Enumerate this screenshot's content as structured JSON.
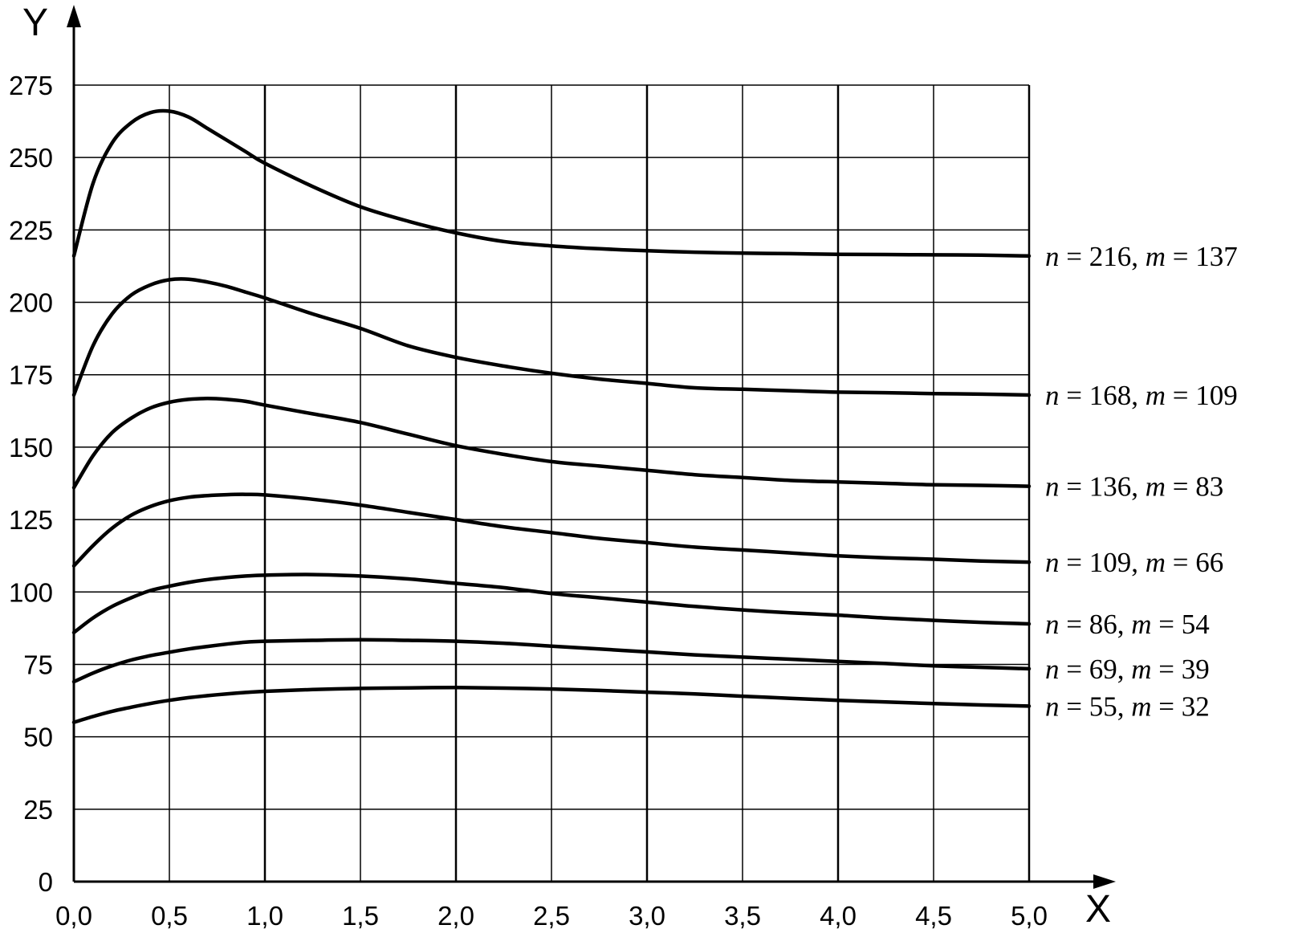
{
  "chart_data": {
    "type": "line",
    "title": "",
    "xlabel": "X",
    "ylabel": "Y",
    "xlim": [
      0,
      5
    ],
    "ylim": [
      0,
      275
    ],
    "grid": true,
    "x_ticks": [
      0,
      0.5,
      1,
      1.5,
      2,
      2.5,
      3,
      3.5,
      4,
      4.5,
      5
    ],
    "x_tick_labels": [
      "0,0",
      "0,5",
      "1,0",
      "1,5",
      "2,0",
      "2,5",
      "3,0",
      "3,5",
      "4,0",
      "4,5",
      "5,0"
    ],
    "y_ticks": [
      0,
      25,
      50,
      75,
      100,
      125,
      150,
      175,
      200,
      225,
      250,
      275
    ],
    "y_tick_labels": [
      "0",
      "25",
      "50",
      "75",
      "100",
      "125",
      "150",
      "175",
      "200",
      "225",
      "250",
      "275"
    ],
    "x": [
      0,
      0.1,
      0.2,
      0.3,
      0.4,
      0.5,
      0.6,
      0.7,
      0.8,
      0.9,
      1.0,
      1.25,
      1.5,
      1.75,
      2.0,
      2.25,
      2.5,
      2.75,
      3.0,
      3.25,
      3.5,
      3.75,
      4.0,
      4.25,
      4.5,
      4.75,
      5.0
    ],
    "series": [
      {
        "n": "216",
        "m": "137",
        "values": [
          216,
          241,
          255,
          262,
          265.5,
          266,
          264,
          260,
          256,
          252,
          248,
          240,
          233,
          228,
          224,
          221,
          219.5,
          218.5,
          217.8,
          217.3,
          217,
          216.8,
          216.6,
          216.5,
          216.4,
          216.3,
          216
        ]
      },
      {
        "n": "168",
        "m": "109",
        "values": [
          168,
          185,
          196,
          202.5,
          206,
          207.8,
          208,
          207,
          205.5,
          203.5,
          201.5,
          196,
          191,
          185,
          181,
          178,
          175.5,
          173.5,
          172,
          170.5,
          170,
          169.5,
          169,
          168.8,
          168.5,
          168.3,
          168
        ]
      },
      {
        "n": "136",
        "m": "83",
        "values": [
          136,
          147,
          155,
          160,
          163.5,
          165.5,
          166.5,
          166.8,
          166.5,
          165.8,
          164.5,
          161.5,
          158.5,
          154.5,
          150.5,
          147.5,
          145,
          143.5,
          142,
          140.5,
          139.5,
          138.5,
          138,
          137.5,
          137,
          136.8,
          136.5
        ]
      },
      {
        "n": "109",
        "m": "66",
        "values": [
          109,
          116,
          122,
          126.5,
          129.5,
          131.5,
          132.7,
          133.3,
          133.6,
          133.7,
          133.5,
          132,
          130,
          127.5,
          125,
          122.5,
          120.5,
          118.5,
          117,
          115.5,
          114.5,
          113.5,
          112.5,
          111.8,
          111.3,
          110.7,
          110.3
        ]
      },
      {
        "n": "86",
        "m": "54",
        "values": [
          86,
          91,
          95,
          98,
          100.5,
          102,
          103.3,
          104.3,
          105,
          105.5,
          105.8,
          106,
          105.5,
          104.5,
          103,
          101.5,
          99.5,
          98,
          96.5,
          95,
          93.8,
          92.8,
          92,
          91,
          90.2,
          89.5,
          89
        ]
      },
      {
        "n": "69",
        "m": "39",
        "values": [
          69,
          72,
          74.5,
          76.5,
          78,
          79.2,
          80.3,
          81.2,
          82,
          82.7,
          83,
          83.3,
          83.5,
          83.3,
          83,
          82.3,
          81.3,
          80.3,
          79.3,
          78.3,
          77.5,
          76.8,
          76,
          75.3,
          74.5,
          74,
          73.5
        ]
      },
      {
        "n": "55",
        "m": "32",
        "values": [
          55,
          57,
          58.8,
          60.2,
          61.5,
          62.6,
          63.5,
          64.2,
          64.8,
          65.3,
          65.7,
          66.3,
          66.7,
          66.9,
          67,
          66.8,
          66.5,
          66,
          65.4,
          64.8,
          64,
          63.3,
          62.6,
          62,
          61.5,
          61,
          60.6
        ]
      }
    ]
  }
}
